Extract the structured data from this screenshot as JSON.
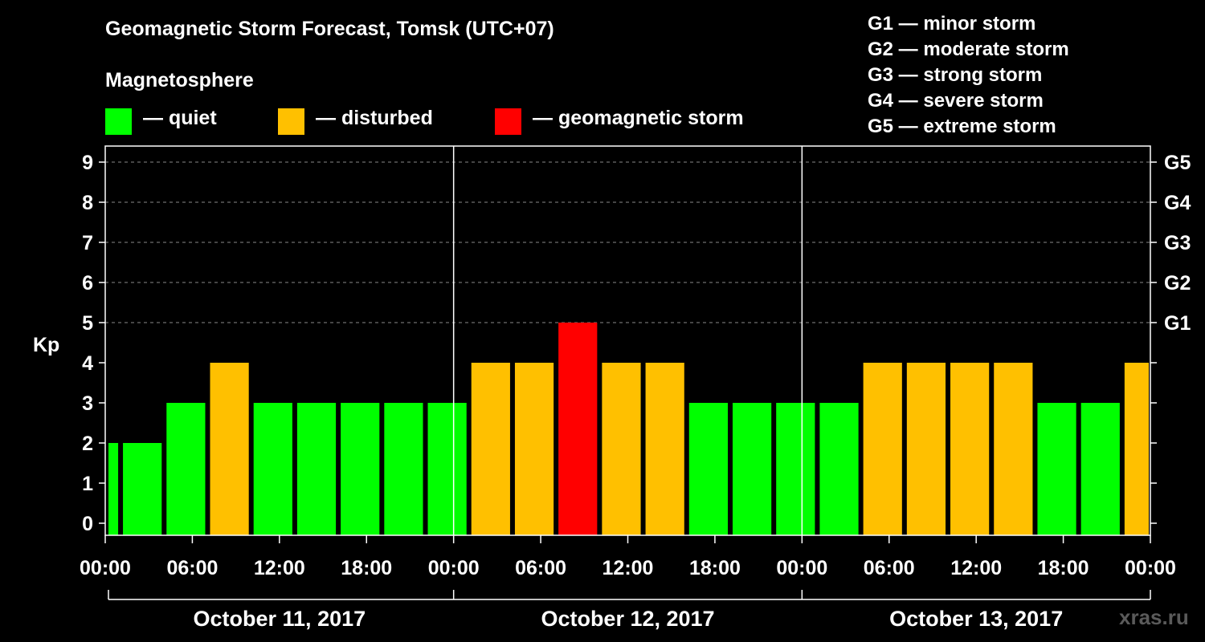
{
  "header": {
    "title": "Geomagnetic Storm Forecast, Tomsk (UTC+07)",
    "subtitle": "Magnetosphere",
    "legend": [
      {
        "label": "— quiet",
        "color": "#00ff00"
      },
      {
        "label": "— disturbed",
        "color": "#ffc000"
      },
      {
        "label": "— geomagnetic storm",
        "color": "#ff0000"
      }
    ]
  },
  "g_scale": [
    "G1 — minor storm",
    "G2 — moderate storm",
    "G3 — strong storm",
    "G4 — severe storm",
    "G5 — extreme storm"
  ],
  "watermark": "xras.ru",
  "colors": {
    "quiet": "#00ff00",
    "disturbed": "#ffc000",
    "storm": "#ff0000",
    "background": "#000000",
    "axis": "#ffffff"
  },
  "chart_data": {
    "type": "bar",
    "ylabel": "Kp",
    "ylim": [
      0,
      9
    ],
    "yticks": [
      0,
      1,
      2,
      3,
      4,
      5,
      6,
      7,
      8,
      9
    ],
    "grid": "dashed horizontal lines at Kp 5–9",
    "right_axis": [
      {
        "kp": 5,
        "label": "G1"
      },
      {
        "kp": 6,
        "label": "G2"
      },
      {
        "kp": 7,
        "label": "G3"
      },
      {
        "kp": 8,
        "label": "G4"
      },
      {
        "kp": 9,
        "label": "G5"
      }
    ],
    "x_tick_labels": [
      "00:00",
      "06:00",
      "12:00",
      "18:00",
      "00:00",
      "06:00",
      "12:00",
      "18:00",
      "00:00",
      "06:00",
      "12:00",
      "18:00",
      "00:00"
    ],
    "days": [
      "October 11, 2017",
      "October 12, 2017",
      "October 13, 2017"
    ],
    "bars": [
      {
        "start": "Oct 11 00:00",
        "kp": 2,
        "level": "quiet"
      },
      {
        "start": "Oct 11 01:00",
        "kp": 2,
        "level": "quiet"
      },
      {
        "start": "Oct 11 04:00",
        "kp": 3,
        "level": "quiet"
      },
      {
        "start": "Oct 11 07:00",
        "kp": 4,
        "level": "disturbed"
      },
      {
        "start": "Oct 11 10:00",
        "kp": 3,
        "level": "quiet"
      },
      {
        "start": "Oct 11 13:00",
        "kp": 3,
        "level": "quiet"
      },
      {
        "start": "Oct 11 16:00",
        "kp": 3,
        "level": "quiet"
      },
      {
        "start": "Oct 11 19:00",
        "kp": 3,
        "level": "quiet"
      },
      {
        "start": "Oct 11 22:00",
        "kp": 3,
        "level": "quiet"
      },
      {
        "start": "Oct 12 01:00",
        "kp": 4,
        "level": "disturbed"
      },
      {
        "start": "Oct 12 04:00",
        "kp": 4,
        "level": "disturbed"
      },
      {
        "start": "Oct 12 07:00",
        "kp": 5,
        "level": "storm"
      },
      {
        "start": "Oct 12 10:00",
        "kp": 4,
        "level": "disturbed"
      },
      {
        "start": "Oct 12 13:00",
        "kp": 4,
        "level": "disturbed"
      },
      {
        "start": "Oct 12 16:00",
        "kp": 3,
        "level": "quiet"
      },
      {
        "start": "Oct 12 19:00",
        "kp": 3,
        "level": "quiet"
      },
      {
        "start": "Oct 12 22:00",
        "kp": 3,
        "level": "quiet"
      },
      {
        "start": "Oct 13 01:00",
        "kp": 3,
        "level": "quiet"
      },
      {
        "start": "Oct 13 04:00",
        "kp": 4,
        "level": "disturbed"
      },
      {
        "start": "Oct 13 07:00",
        "kp": 4,
        "level": "disturbed"
      },
      {
        "start": "Oct 13 10:00",
        "kp": 4,
        "level": "disturbed"
      },
      {
        "start": "Oct 13 13:00",
        "kp": 4,
        "level": "disturbed"
      },
      {
        "start": "Oct 13 16:00",
        "kp": 3,
        "level": "quiet"
      },
      {
        "start": "Oct 13 19:00",
        "kp": 3,
        "level": "quiet"
      },
      {
        "start": "Oct 13 22:00",
        "kp": 4,
        "level": "disturbed"
      }
    ]
  }
}
